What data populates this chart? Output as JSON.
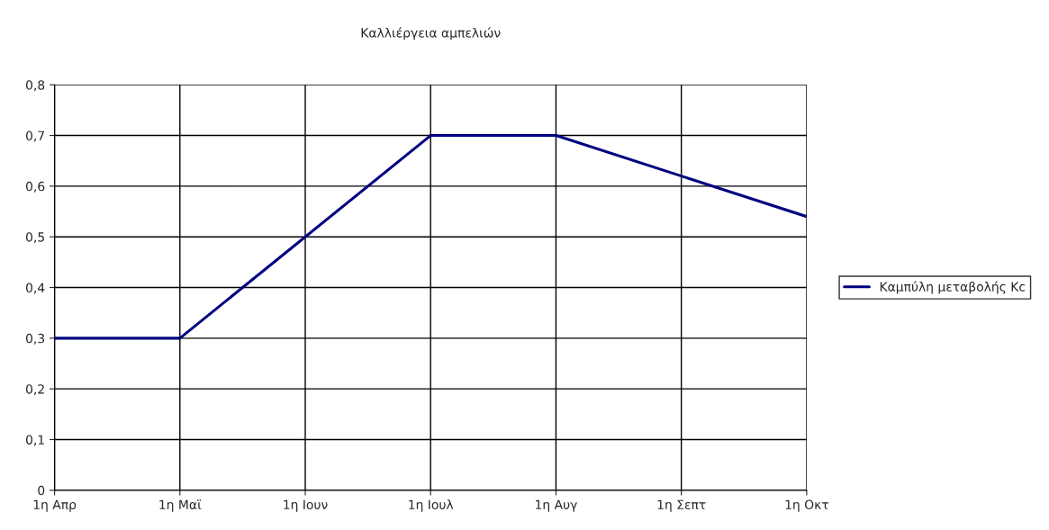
{
  "chart_data": {
    "type": "line",
    "title": "Καλλιέργεια αμπελιών",
    "categories": [
      "1η Απρ",
      "1η Μαϊ",
      "1η Ιουν",
      "1η Ιουλ",
      "1η Αυγ",
      "1η Σεπτ",
      "1η Οκτ"
    ],
    "series": [
      {
        "name": "Καμπύλη μεταβολής Kc",
        "color": "#000080",
        "values": [
          0.3,
          0.3,
          0.5,
          0.7,
          0.7,
          0.62,
          0.54
        ]
      }
    ],
    "ylim": [
      0,
      0.8
    ],
    "yticks": [
      0,
      {
        "value": 0.1,
        "label": "0,1"
      },
      {
        "value": 0.2,
        "label": "0,2"
      },
      {
        "value": 0.3,
        "label": "0,3"
      },
      {
        "value": 0.4,
        "label": "0,4"
      },
      {
        "value": 0.5,
        "label": "0,5"
      },
      {
        "value": 0.6,
        "label": "0,6"
      },
      {
        "value": 0.7,
        "label": "0,7"
      },
      {
        "value": 0.8,
        "label": "0,8"
      }
    ],
    "grid": true,
    "legend": "right",
    "marker": "none",
    "line_style": "solid"
  }
}
